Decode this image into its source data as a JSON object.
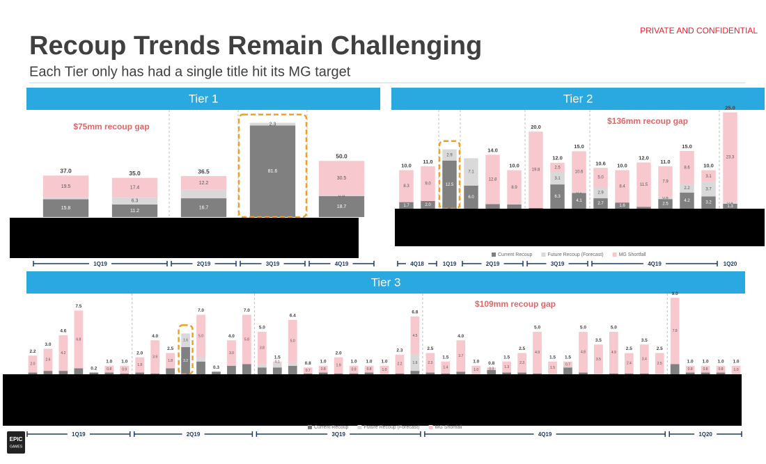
{
  "header": {
    "confidential": "PRIVATE AND CONFIDENTIAL",
    "title": "Recoup Trends Remain Challenging",
    "subtitle": "Each Tier only has had a single title hit its MG target"
  },
  "footer": {
    "logo": [
      "EPIC",
      "GAMES"
    ]
  },
  "chart_data": [
    {
      "type": "bar",
      "stacked": true,
      "title": "Tier 1",
      "annotation": "$75mm recoup gap",
      "categories": [
        null,
        null,
        null,
        null,
        null
      ],
      "series": [
        {
          "color": "#808080",
          "values": [
            15.8,
            11.2,
            16.7,
            81.6,
            18.7
          ],
          "value_labels": [
            "15.8",
            "11.2",
            "16.7",
            "81.6",
            "18.7"
          ]
        },
        {
          "color": "#d9d9d9",
          "values": [
            1.7,
            6.3,
            7.6,
            2.3,
            0.8
          ],
          "value_labels": [
            null,
            "6.3",
            null,
            "2.3",
            "0.8"
          ]
        },
        {
          "color": "#f8c8cf",
          "values": [
            19.5,
            17.4,
            12.2,
            0,
            30.5
          ],
          "value_labels": [
            "19.5",
            "17.4",
            "12.2",
            null,
            "30.5"
          ]
        }
      ],
      "totals": {
        "values": [
          37,
          35,
          36.5,
          null,
          50
        ],
        "value_labels": [
          "37.0",
          "35.0",
          "36.5",
          null,
          "50.0"
        ]
      },
      "periods": [
        {
          "label": "1Q19",
          "bars": 2
        },
        {
          "label": "2Q19",
          "bars": 1
        },
        {
          "label": "3Q19",
          "bars": 1
        },
        {
          "label": "4Q19",
          "bars": 1
        }
      ],
      "ylim": [
        0,
        88
      ]
    },
    {
      "type": "bar",
      "stacked": true,
      "title": "Tier 2",
      "annotation": "$136mm recoup gap",
      "categories": [
        null,
        null,
        null,
        null,
        null,
        null,
        null,
        null,
        null,
        null,
        null,
        null,
        null,
        null,
        null,
        null
      ],
      "series": [
        {
          "name": "Current Recoup",
          "color": "#808080",
          "values": [
            1.7,
            2.0,
            12.5,
            6.0,
            1.2,
            1.1,
            0.2,
            6.3,
            4.1,
            2.7,
            1.6,
            0.5,
            2.5,
            4.2,
            3.2,
            1.3
          ],
          "value_labels": [
            "1.7",
            "2.0",
            "12.5",
            "6.0",
            null,
            null,
            null,
            "6.3",
            "4.1",
            "2.7",
            "1.6",
            null,
            "2.5",
            "4.2",
            "3.2",
            "1.3"
          ]
        },
        {
          "name": "Future Recoup (Forecast)",
          "color": "#d9d9d9",
          "values": [
            0,
            0,
            2.9,
            7.1,
            0,
            0,
            0,
            3.1,
            0.2,
            2.9,
            0,
            0,
            0.6,
            2.2,
            3.7,
            0.4
          ],
          "value_labels": [
            null,
            null,
            "2.9",
            "7.1",
            null,
            null,
            null,
            "3.1",
            "0.2",
            "2.9",
            null,
            null,
            "0.6",
            "2.2",
            "3.7",
            "0.4"
          ]
        },
        {
          "name": "MG Shortfall",
          "color": "#f8c8cf",
          "values": [
            8.3,
            9.0,
            0,
            0,
            12.8,
            8.9,
            19.8,
            2.5,
            10.6,
            5.0,
            8.4,
            11.5,
            7.9,
            8.6,
            3.1,
            23.3
          ],
          "value_labels": [
            "8.3",
            "9.0",
            null,
            null,
            "12.8",
            "8.9",
            "19.8",
            "2.5",
            "10.6",
            "5.0",
            "8.4",
            "11.5",
            "7.9",
            "8.6",
            "3.1",
            "23.3"
          ]
        }
      ],
      "totals": {
        "values": [
          10,
          11,
          null,
          null,
          14,
          10,
          20,
          12,
          15,
          10.6,
          10,
          12,
          11,
          15,
          10,
          25
        ],
        "value_labels": [
          "10.0",
          "11.0",
          null,
          null,
          "14.0",
          "10.0",
          "20.0",
          "12.0",
          "15.0",
          "10.6",
          "10.0",
          "12.0",
          "11.0",
          "15.0",
          "10.0",
          "25.0"
        ]
      },
      "periods": [
        {
          "label": "4Q18",
          "bars": 2
        },
        {
          "label": "1Q19",
          "bars": 1
        },
        {
          "label": "2Q19",
          "bars": 3
        },
        {
          "label": "3Q19",
          "bars": 3
        },
        {
          "label": "4Q19",
          "bars": 6
        },
        {
          "label": "1Q20",
          "bars": 1
        }
      ],
      "ylim": [
        0,
        26
      ]
    },
    {
      "type": "bar",
      "stacked": true,
      "title": "Tier 3",
      "annotation": "$109mm recoup gap",
      "categories": [
        null,
        null,
        null,
        null,
        null,
        null,
        null,
        null,
        null,
        null,
        null,
        null,
        null,
        null,
        null,
        null,
        null,
        null,
        null,
        null,
        null,
        null,
        null,
        null,
        null,
        null,
        null,
        null,
        null,
        null,
        null,
        null,
        null,
        null,
        null,
        null,
        null,
        null,
        null,
        null,
        null,
        null,
        null,
        null,
        null,
        null,
        null
      ],
      "series": [
        {
          "name": "Current Recoup",
          "color": "#808080",
          "values": [
            0.2,
            0.4,
            0.4,
            0.7,
            0.2,
            0.2,
            0.1,
            0.2,
            0.1,
            0.7,
            3.2,
            1.5,
            0.3,
            1.0,
            1.2,
            0.8,
            0.8,
            1.0,
            0.1,
            0.2,
            0.1,
            0.1,
            0.2,
            0,
            0.1,
            0.4,
            0.2,
            0.1,
            0.3,
            0,
            0.5,
            0.2,
            0.2,
            0.1,
            0,
            0.8,
            0.2,
            0,
            0.1,
            0.1,
            0.1,
            0,
            1.2,
            0.2,
            0.2,
            0.2,
            0
          ],
          "value_labels": [
            null,
            null,
            null,
            null,
            null,
            null,
            null,
            null,
            null,
            null,
            "3.2",
            null,
            null,
            null,
            null,
            null,
            null,
            null,
            null,
            null,
            null,
            null,
            null,
            null,
            null,
            null,
            null,
            null,
            null,
            null,
            null,
            null,
            null,
            null,
            null,
            null,
            null,
            null,
            null,
            null,
            null,
            null,
            null,
            null,
            null,
            null,
            null
          ]
        },
        {
          "name": "Future Recoup (Forecast)",
          "color": "#d9d9d9",
          "values": [
            0,
            0,
            0,
            0,
            0,
            0,
            0,
            0,
            0,
            0,
            1.6,
            0.5,
            0,
            0,
            0,
            0.4,
            0.6,
            0.4,
            0,
            0,
            0,
            0,
            0,
            0,
            0,
            1.9,
            0,
            0,
            0,
            0,
            0,
            0,
            0,
            0,
            0,
            0,
            0,
            0,
            0,
            0,
            0,
            0,
            0,
            0,
            0,
            0,
            0
          ],
          "value_labels": [
            null,
            null,
            null,
            null,
            null,
            null,
            null,
            null,
            null,
            null,
            "1.6",
            null,
            null,
            null,
            null,
            null,
            null,
            null,
            null,
            null,
            null,
            null,
            null,
            null,
            null,
            "1.9",
            null,
            null,
            null,
            null,
            null,
            null,
            null,
            null,
            null,
            null,
            null,
            null,
            null,
            null,
            null,
            null,
            null,
            null,
            null,
            null,
            null
          ]
        },
        {
          "name": "MG Shortfall",
          "color": "#f8c8cf",
          "values": [
            2.0,
            2.6,
            4.2,
            6.8,
            0,
            0.8,
            0.9,
            1.8,
            3.9,
            1.8,
            0,
            5.0,
            0,
            3.0,
            5.8,
            3.8,
            0.1,
            5.0,
            0.7,
            0.8,
            1.9,
            0.9,
            0.8,
            1.0,
            2.2,
            4.5,
            2.3,
            1.4,
            3.7,
            1.0,
            0.3,
            1.3,
            2.3,
            4.9,
            1.5,
            0.7,
            4.8,
            3.5,
            4.9,
            2.4,
            3.4,
            2.5,
            7.8,
            0.8,
            0.8,
            0.8,
            1.0
          ],
          "value_labels": [
            "2.0",
            "2.6",
            "4.2",
            "6.8",
            null,
            "0.8",
            "0.9",
            "1.8",
            "3.9",
            "1.8",
            null,
            "5.0",
            null,
            "3.0",
            "5.8",
            "3.8",
            "0.1",
            "5.0",
            "0.7",
            "0.8",
            "1.9",
            "0.9",
            "0.8",
            "1.0",
            "2.2",
            "4.5",
            "2.3",
            "1.4",
            "3.7",
            "1.0",
            "0.3",
            "1.3",
            "2.3",
            "4.9",
            "1.5",
            "0.7",
            "4.8",
            "3.5",
            "4.9",
            "2.4",
            "3.4",
            "2.5",
            "7.8",
            "0.8",
            "0.8",
            "0.8",
            "1.0"
          ]
        }
      ],
      "totals": {
        "values": [
          2.2,
          3,
          4.6,
          7.5,
          0.2,
          1,
          1,
          2,
          4,
          2.5,
          null,
          7,
          0.3,
          4,
          7,
          5,
          1.5,
          6.4,
          0.8,
          1,
          2,
          1,
          1,
          1,
          2.3,
          6.8,
          2.5,
          1.5,
          4,
          1,
          0.8,
          1.5,
          2.5,
          5,
          1.5,
          1.5,
          5,
          3.5,
          5,
          2.5,
          3.5,
          2.5,
          9,
          1,
          1,
          1,
          1
        ],
        "value_labels": [
          "2.2",
          "3.0",
          "4.6",
          "7.5",
          "0.2",
          "1.0",
          "1.0",
          "2.0",
          "4.0",
          "2.5",
          null,
          "7.0",
          "0.3",
          "4.0",
          "7.0",
          "5.0",
          "1.5",
          "6.4",
          "0.8",
          "1.0",
          "2.0",
          "1.0",
          "1.0",
          "1.0",
          "2.3",
          "6.8",
          "2.5",
          "1.5",
          "4.0",
          "1.0",
          "0.8",
          "1.5",
          "2.5",
          "5.0",
          "1.5",
          "1.5",
          "5.0",
          "3.5",
          "5.0",
          "2.5",
          "3.5",
          "2.5",
          "9.0",
          "1.0",
          "1.0",
          "1.0",
          "1.0"
        ]
      },
      "periods": [
        {
          "label": "1Q19",
          "bars": 7
        },
        {
          "label": "2Q19",
          "bars": 8
        },
        {
          "label": "3Q19",
          "bars": 11
        },
        {
          "label": "4Q19",
          "bars": 16
        },
        {
          "label": "1Q20",
          "bars": 5
        }
      ],
      "ylim": [
        0,
        9.5
      ]
    }
  ]
}
